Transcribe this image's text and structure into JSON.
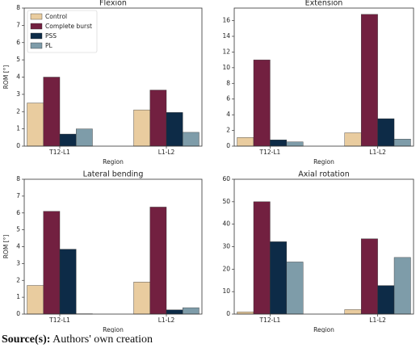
{
  "chart_data": [
    {
      "type": "bar",
      "title": "Flexion",
      "xlabel": "Region",
      "ylabel": "ROM [°]",
      "categories": [
        "T12-L1",
        "L1-L2"
      ],
      "series": [
        {
          "name": "Control",
          "color": "#e9cc9f",
          "values": [
            2.5,
            2.1
          ]
        },
        {
          "name": "Complete burst",
          "color": "#722040",
          "values": [
            4.0,
            3.25
          ]
        },
        {
          "name": "PSS",
          "color": "#0d2b47",
          "values": [
            0.7,
            1.95
          ]
        },
        {
          "name": "PL",
          "color": "#7e9ca9",
          "values": [
            1.0,
            0.8
          ]
        }
      ],
      "ylim": [
        0,
        8
      ],
      "yticks": [
        0,
        1,
        2,
        3,
        4,
        5,
        6,
        7,
        8
      ],
      "legend": "upper left"
    },
    {
      "type": "bar",
      "title": "Extension",
      "xlabel": "Region",
      "categories": [
        "T12-L1",
        "L1-L2"
      ],
      "series": [
        {
          "name": "Control",
          "color": "#e9cc9f",
          "values": [
            1.1,
            1.7
          ]
        },
        {
          "name": "Complete burst",
          "color": "#722040",
          "values": [
            11.0,
            16.8
          ]
        },
        {
          "name": "PSS",
          "color": "#0d2b47",
          "values": [
            0.8,
            3.5
          ]
        },
        {
          "name": "PL",
          "color": "#7e9ca9",
          "values": [
            0.55,
            0.9
          ]
        }
      ],
      "ylim": [
        0,
        17.6
      ],
      "yticks": [
        0,
        2,
        4,
        6,
        8,
        10,
        12,
        14,
        16
      ]
    },
    {
      "type": "bar",
      "title": "Lateral bending",
      "xlabel": "Region",
      "ylabel": "ROM [°]",
      "categories": [
        "T12-L1",
        "L1-L2"
      ],
      "series": [
        {
          "name": "Control",
          "color": "#e9cc9f",
          "values": [
            1.7,
            1.9
          ]
        },
        {
          "name": "Complete burst",
          "color": "#722040",
          "values": [
            6.1,
            6.35
          ]
        },
        {
          "name": "PSS",
          "color": "#0d2b47",
          "values": [
            3.85,
            0.25
          ]
        },
        {
          "name": "PL",
          "color": "#7e9ca9",
          "values": [
            0.02,
            0.38
          ]
        }
      ],
      "ylim": [
        0,
        8
      ],
      "yticks": [
        0,
        1,
        2,
        3,
        4,
        5,
        6,
        7,
        8
      ]
    },
    {
      "type": "bar",
      "title": "Axial rotation",
      "xlabel": "Region",
      "categories": [
        "T12-L1",
        "L1-L2"
      ],
      "series": [
        {
          "name": "Control",
          "color": "#e9cc9f",
          "values": [
            1.0,
            2.0
          ]
        },
        {
          "name": "Complete burst",
          "color": "#722040",
          "values": [
            50.0,
            33.5
          ]
        },
        {
          "name": "PSS",
          "color": "#0d2b47",
          "values": [
            32.2,
            12.7
          ]
        },
        {
          "name": "PL",
          "color": "#7e9ca9",
          "values": [
            23.2,
            25.2
          ]
        }
      ],
      "ylim": [
        0,
        60
      ],
      "yticks": [
        0,
        10,
        20,
        30,
        40,
        50,
        60
      ]
    }
  ],
  "caption": {
    "label": "Source(s):",
    "text": "Authors' own creation"
  }
}
